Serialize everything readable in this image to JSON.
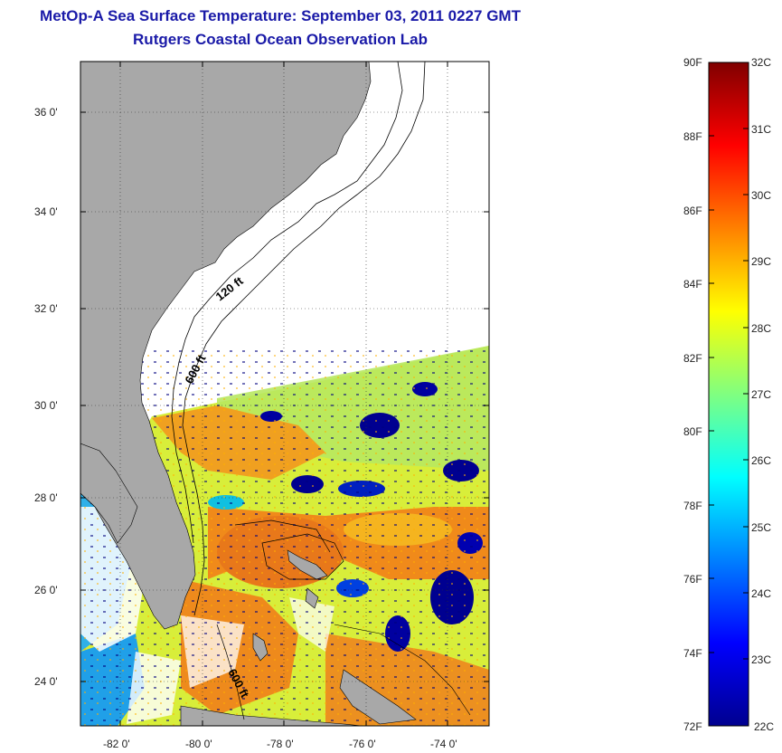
{
  "title": {
    "line1": "MetOp-A Sea Surface Temperature:  September 03, 2011 0227 GMT",
    "line2": "Rutgers Coastal Ocean Observation Lab"
  },
  "map": {
    "lat_labels": [
      "36 0'",
      "34 0'",
      "32 0'",
      "30 0'",
      "28 0'",
      "26 0'",
      "24 0'"
    ],
    "lon_labels": [
      "-82 0'",
      "-80 0'",
      "-78 0'",
      "-76 0'",
      "-74 0'"
    ],
    "contour_labels": [
      "120 ft",
      "600 ft",
      "600 ft"
    ],
    "colors": {
      "land": "#a8a8a8",
      "no_data": "#ffffff"
    }
  },
  "colorbar": {
    "fahrenheit": [
      "90F",
      "88F",
      "86F",
      "84F",
      "82F",
      "80F",
      "78F",
      "76F",
      "74F",
      "72F"
    ],
    "celsius": [
      "32C",
      "31C",
      "30C",
      "29C",
      "28C",
      "27C",
      "26C",
      "25C",
      "24C",
      "23C",
      "22C"
    ],
    "colormap": [
      "#00008f",
      "#0000ff",
      "#0080ff",
      "#00ffff",
      "#80ff80",
      "#ffff00",
      "#ff8000",
      "#ff0000",
      "#800000"
    ]
  }
}
